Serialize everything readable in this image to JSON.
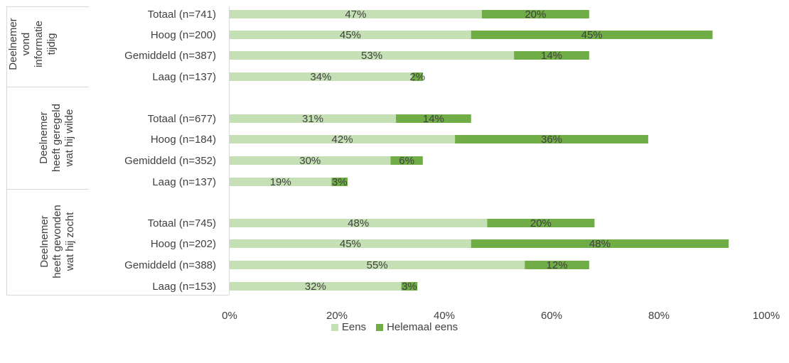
{
  "chart_data": {
    "type": "bar",
    "orientation": "horizontal",
    "stacked": true,
    "groups": [
      {
        "label_lines": [
          "Deelnemer",
          "vond",
          "informatie",
          "tijdig"
        ],
        "categories": [
          "Totaal (n=741)",
          "Hoog (n=200)",
          "Gemiddeld (n=387)",
          "Laag (n=137)"
        ]
      },
      {
        "label_lines": [
          "Deelnemer",
          "heeft geregeld",
          "wat hij wilde"
        ],
        "categories": [
          "Totaal (n=677)",
          "Hoog (n=184)",
          "Gemiddeld (n=352)",
          "Laag (n=137)"
        ]
      },
      {
        "label_lines": [
          "Deelnemer",
          "heeft gevonden",
          "wat hij zocht"
        ],
        "categories": [
          "Totaal (n=745)",
          "Hoog (n=202)",
          "Gemiddeld (n=388)",
          "Laag (n=153)"
        ]
      }
    ],
    "series": [
      {
        "name": "Eens",
        "color": "#c5e0b4",
        "values": [
          47,
          45,
          53,
          34,
          31,
          42,
          30,
          19,
          48,
          45,
          55,
          32
        ],
        "labels": [
          "47%",
          "45%",
          "53%",
          "34%",
          "31%",
          "42%",
          "30%",
          "19%",
          "48%",
          "45%",
          "55%",
          "32%"
        ]
      },
      {
        "name": "Helemaal eens",
        "color": "#70ad47",
        "values": [
          20,
          45,
          14,
          2,
          14,
          36,
          6,
          3,
          20,
          48,
          12,
          3
        ],
        "labels": [
          "20%",
          "45%",
          "14%",
          "2%",
          "14%",
          "36%",
          "6%",
          "3%",
          "20%",
          "48%",
          "12%",
          "3%"
        ]
      }
    ],
    "xlim": [
      0,
      100
    ],
    "xticks": [
      "0%",
      "20%",
      "40%",
      "60%",
      "80%",
      "100%"
    ],
    "legend_position": "bottom",
    "grid": false
  }
}
